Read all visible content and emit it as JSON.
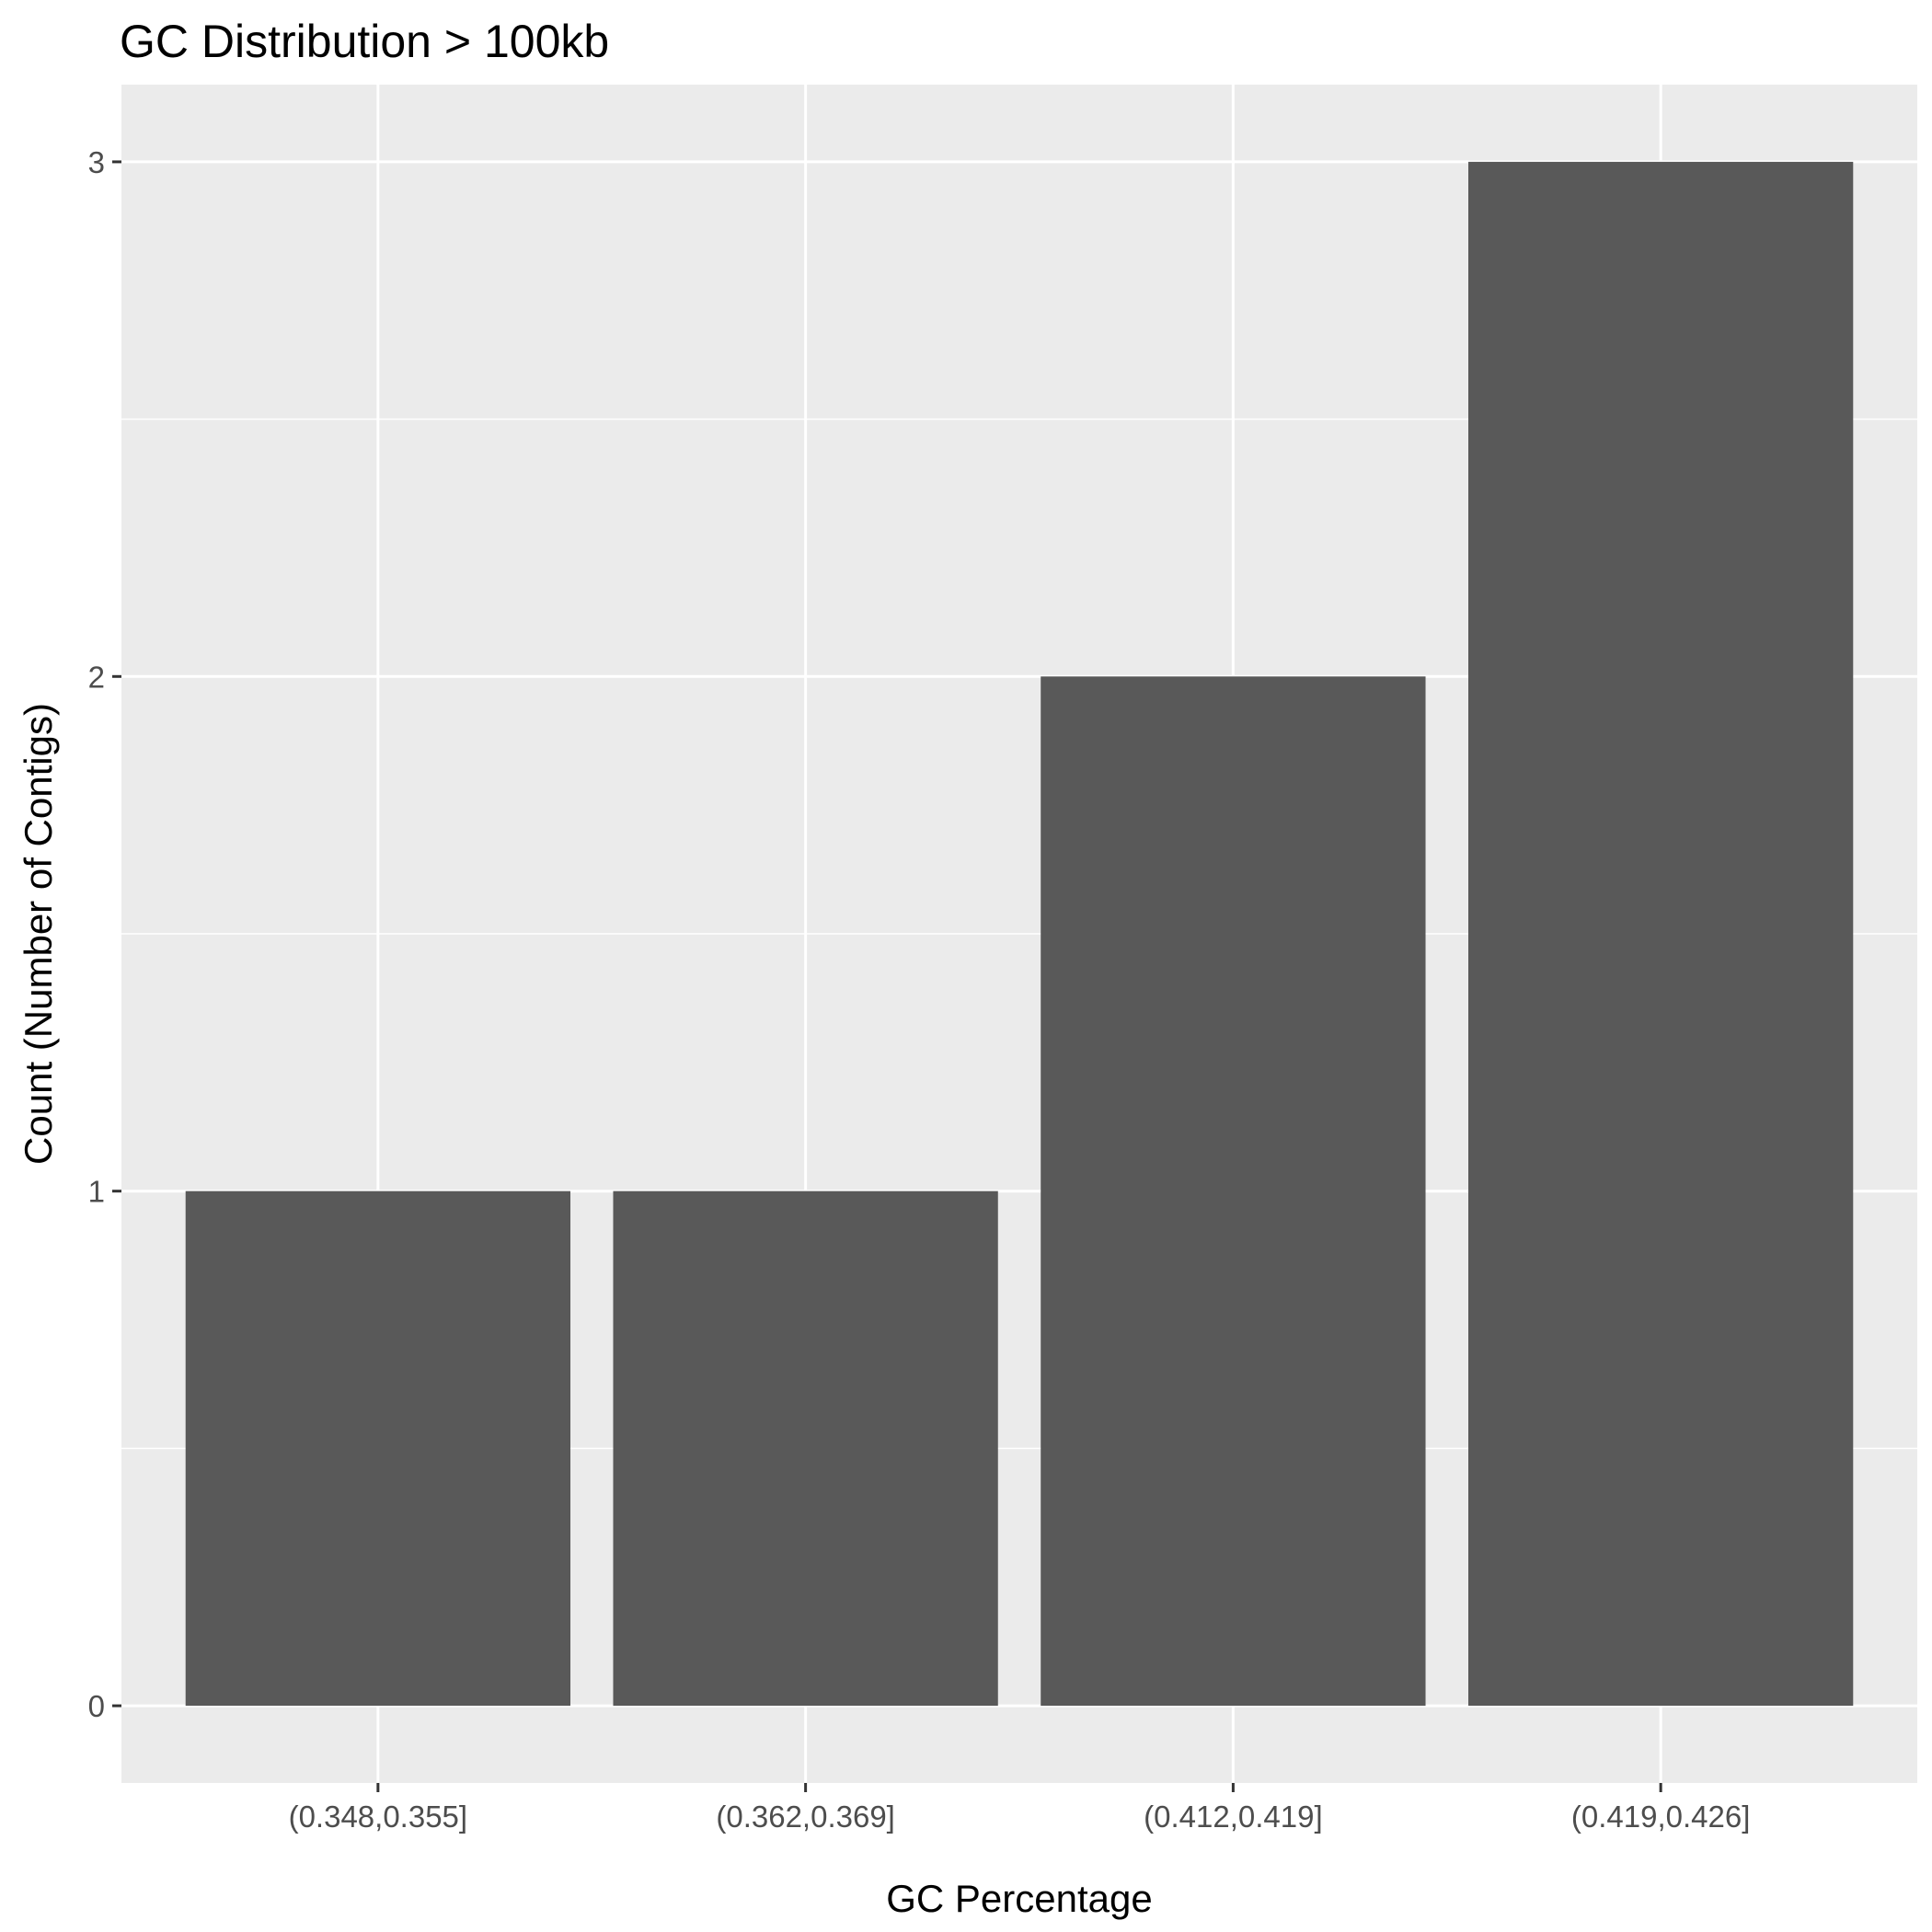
{
  "chart_data": {
    "type": "bar",
    "title": "GC Distribution > 100kb",
    "xlabel": "GC Percentage",
    "ylabel": "Count (Number of Contigs)",
    "categories": [
      "(0.348,0.355]",
      "(0.362,0.369]",
      "(0.412,0.419]",
      "(0.419,0.426]"
    ],
    "values": [
      1,
      1,
      2,
      3
    ],
    "y_ticks": [
      "0",
      "1",
      "2",
      "3"
    ],
    "ylim": [
      -0.15,
      3.15
    ],
    "grid": true,
    "legend": "none",
    "colors": {
      "bar": "#595959",
      "panel": "#ebebeb",
      "grid": "#ffffff",
      "tick": "#333333"
    }
  }
}
